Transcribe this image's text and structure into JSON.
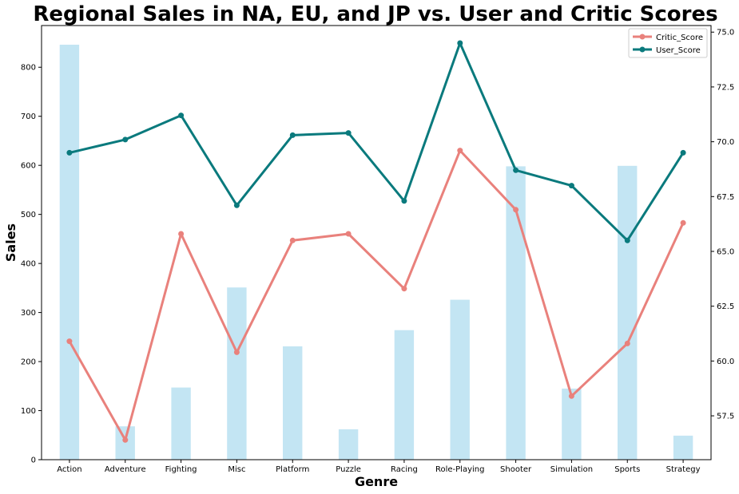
{
  "chart_data": {
    "type": "bar",
    "title": "Regional Sales in NA, EU, and JP  vs.  User and Critic Scores",
    "xlabel": "Genre",
    "ylabel": "Sales",
    "categories": [
      "Action",
      "Adventure",
      "Fighting",
      "Misc",
      "Platform",
      "Puzzle",
      "Racing",
      "Role-Playing",
      "Shooter",
      "Simulation",
      "Sports",
      "Strategy"
    ],
    "bar_series": {
      "values": [
        846,
        68,
        147,
        351,
        231,
        62,
        264,
        326,
        598,
        145,
        599,
        49
      ],
      "color": "#c3e5f3"
    },
    "ylim": [
      0,
      885
    ],
    "yticks": [
      "0",
      "100",
      "200",
      "300",
      "400",
      "500",
      "600",
      "700",
      "800"
    ],
    "y2lim": [
      55.5,
      75.3
    ],
    "y2ticks": [
      "57.5",
      "60.0",
      "62.5",
      "65.0",
      "67.5",
      "70.0",
      "72.5",
      "75.0"
    ],
    "line_series": [
      {
        "name": "Critic_Score",
        "color": "#e9817c",
        "values": [
          60.9,
          56.4,
          65.8,
          60.4,
          65.5,
          65.8,
          63.3,
          69.6,
          66.9,
          58.4,
          60.8,
          66.3
        ]
      },
      {
        "name": "User_Score",
        "color": "#0a7a7d",
        "values": [
          69.5,
          70.1,
          71.2,
          67.1,
          70.3,
          70.4,
          67.3,
          74.5,
          68.7,
          68.0,
          65.5,
          69.5
        ]
      }
    ],
    "legend_position": "top-right",
    "grid": false
  }
}
